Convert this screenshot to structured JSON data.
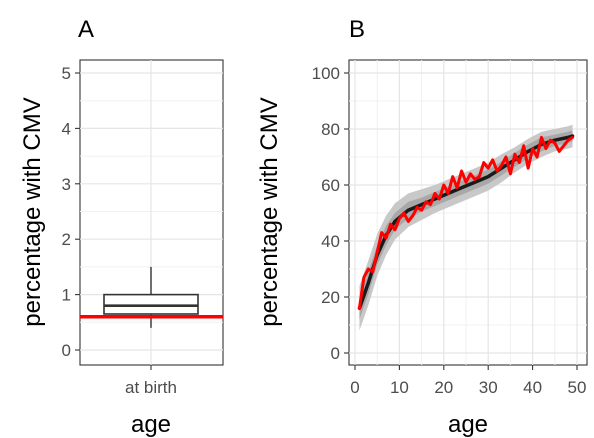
{
  "chart_data": [
    {
      "type": "box",
      "panel_label": "A",
      "xlabel": "age",
      "ylabel": "percentage with CMV",
      "categories": [
        "at birth"
      ],
      "ylim": [
        0,
        5
      ],
      "yticks": [
        0,
        1,
        2,
        3,
        4,
        5
      ],
      "box": {
        "whisker_low": 0.4,
        "q1": 0.65,
        "median": 0.8,
        "q3": 1.0,
        "whisker_high": 1.5
      },
      "reference_line": {
        "y": 0.6,
        "color": "#ff0000"
      },
      "grid": true
    },
    {
      "type": "line",
      "panel_label": "B",
      "xlabel": "age",
      "ylabel": "percentage with CMV",
      "xlim": [
        0,
        50
      ],
      "ylim": [
        0,
        100
      ],
      "xticks": [
        0,
        10,
        20,
        30,
        40,
        50
      ],
      "yticks": [
        0,
        20,
        40,
        60,
        80,
        100
      ],
      "grid": true,
      "series": [
        {
          "role": "model fit",
          "color": "#1a1a1a",
          "x": [
            1,
            3,
            5,
            7,
            9,
            12,
            15,
            18,
            21,
            24,
            27,
            30,
            33,
            36,
            39,
            42,
            45,
            48,
            49
          ],
          "y": [
            16,
            25,
            35,
            42,
            47,
            51,
            53,
            55,
            57,
            59,
            61,
            63,
            66,
            69,
            72,
            74.5,
            76,
            77,
            77.5
          ],
          "band_outer_halfwidth": [
            8,
            8,
            7.5,
            7,
            6.5,
            6,
            5.5,
            5,
            5,
            5,
            5,
            5,
            5,
            4.5,
            4.5,
            4.5,
            4,
            4,
            4
          ],
          "band_inner_halfwidth": [
            4,
            4,
            3.5,
            3.5,
            3,
            3,
            2.5,
            2.5,
            2.5,
            2.5,
            2.5,
            2.5,
            2.5,
            2.5,
            2.5,
            2.5,
            2,
            2,
            2
          ]
        },
        {
          "role": "observed",
          "color": "#ff0000",
          "x": [
            1,
            2,
            3,
            4,
            5,
            6,
            7,
            8,
            9,
            10,
            11,
            12,
            13,
            14,
            15,
            16,
            17,
            18,
            19,
            20,
            21,
            22,
            23,
            24,
            25,
            26,
            27,
            28,
            29,
            30,
            31,
            32,
            33,
            34,
            35,
            36,
            37,
            38,
            39,
            40,
            41,
            42,
            43,
            44,
            45,
            46,
            47,
            48,
            49
          ],
          "y": [
            16,
            27,
            30,
            29,
            36,
            43,
            41,
            46,
            44,
            48,
            50,
            47,
            49,
            52,
            51,
            54,
            53,
            57,
            55,
            60,
            57,
            63,
            59,
            65,
            61,
            64,
            62,
            63,
            68,
            66,
            69,
            65,
            67,
            70,
            64,
            71,
            68,
            74,
            66,
            73,
            70,
            77,
            73,
            76,
            75,
            72,
            74,
            76,
            77
          ]
        }
      ]
    }
  ]
}
